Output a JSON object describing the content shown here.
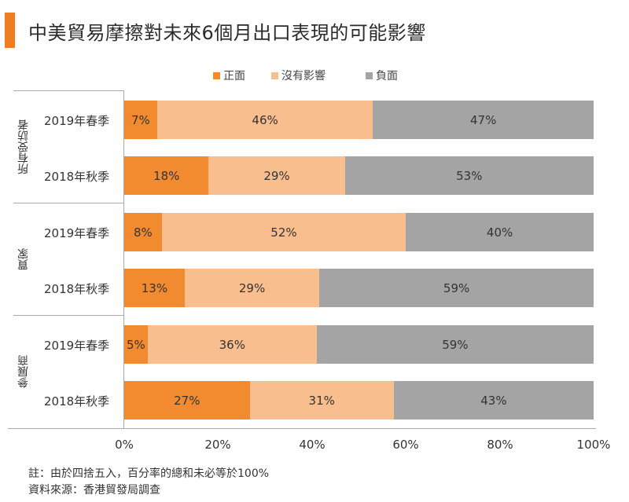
{
  "title": "中美貿易摩擦對未來6個月出口表現的可能影響",
  "colors": {
    "title_accent": "#f07d22",
    "positive": "#f28a30",
    "no_impact": "#f8be8e",
    "negative": "#a5a4a5"
  },
  "legend": [
    {
      "label": "正面",
      "color": "#f28a30"
    },
    {
      "label": "沒有影響",
      "color": "#f8be8e"
    },
    {
      "label": "負面",
      "color": "#a5a4a5"
    }
  ],
  "groups": [
    {
      "label": "所有受訪者"
    },
    {
      "label": "買家"
    },
    {
      "label": "參展商"
    }
  ],
  "rows": [
    {
      "group": 0,
      "label": "2019年春季",
      "values": [
        7,
        46,
        47
      ],
      "texts": [
        "7%",
        "46%",
        "47%"
      ]
    },
    {
      "group": 0,
      "label": "2018年秋季",
      "values": [
        18,
        29,
        53
      ],
      "texts": [
        "18%",
        "29%",
        "53%"
      ]
    },
    {
      "group": 1,
      "label": "2019年春季",
      "values": [
        8,
        52,
        40
      ],
      "texts": [
        "8%",
        "52%",
        "40%"
      ]
    },
    {
      "group": 1,
      "label": "2018年秋季",
      "values": [
        13,
        29,
        59
      ],
      "texts": [
        "13%",
        "29%",
        "59%"
      ]
    },
    {
      "group": 2,
      "label": "2019年春季",
      "values": [
        5,
        36,
        59
      ],
      "texts": [
        "5%",
        "36%",
        "59%"
      ]
    },
    {
      "group": 2,
      "label": "2018年秋季",
      "values": [
        27,
        31,
        43
      ],
      "texts": [
        "27%",
        "31%",
        "43%"
      ]
    }
  ],
  "x_ticks": [
    "0%",
    "20%",
    "40%",
    "60%",
    "80%",
    "100%"
  ],
  "notes": [
    "註：由於四捨五入，百分率的總和未必等於100%",
    "資料來源：香港貿發局調查"
  ],
  "chart_data": {
    "type": "bar",
    "orientation": "horizontal",
    "stacked": true,
    "title": "中美貿易摩擦對未來6個月出口表現的可能影響",
    "categories": [
      "所有受訪者 - 2019年春季",
      "所有受訪者 - 2018年秋季",
      "買家 - 2019年春季",
      "買家 - 2018年秋季",
      "參展商 - 2019年春季",
      "參展商 - 2018年秋季"
    ],
    "series": [
      {
        "name": "正面",
        "values": [
          7,
          18,
          8,
          13,
          5,
          27
        ]
      },
      {
        "name": "沒有影響",
        "values": [
          46,
          29,
          52,
          29,
          36,
          31
        ]
      },
      {
        "name": "負面",
        "values": [
          47,
          53,
          40,
          59,
          59,
          43
        ]
      }
    ],
    "xlabel": "",
    "ylabel": "",
    "xlim": [
      0,
      100
    ],
    "x_ticks": [
      "0%",
      "20%",
      "40%",
      "60%",
      "80%",
      "100%"
    ],
    "legend_position": "top",
    "grid": false,
    "annotations": [
      "註：由於四捨五入，百分率的總和未必等於100%",
      "資料來源：香港貿發局調查"
    ]
  }
}
